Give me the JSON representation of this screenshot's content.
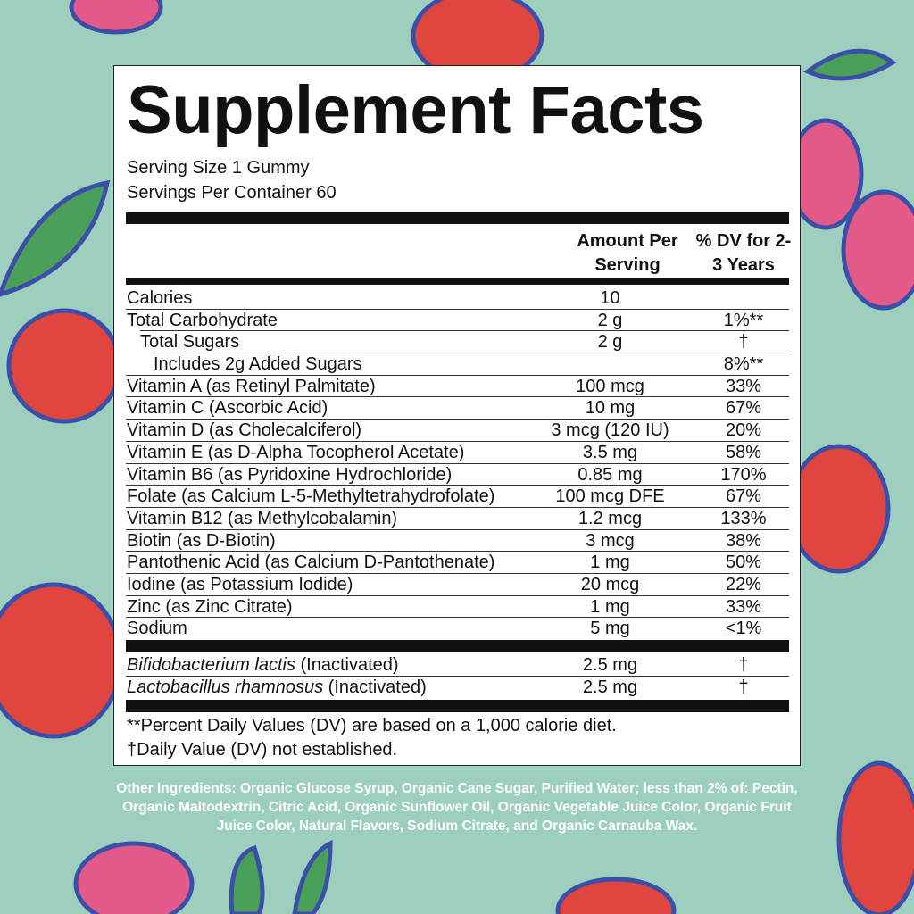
{
  "panel": {
    "title": "Supplement Facts",
    "serving_size": "Serving Size 1 Gummy",
    "servings_per_container": "Servings Per Container 60",
    "header_amount": "Amount Per Serving",
    "header_dv": "% DV for 2-3 Years",
    "rows": [
      {
        "name": "Calories",
        "amount": "10",
        "dv": "",
        "indent": 0
      },
      {
        "name": "Total Carbohydrate",
        "amount": "2 g",
        "dv": "1%**",
        "indent": 0
      },
      {
        "name": "Total Sugars",
        "amount": "2 g",
        "dv": "†",
        "indent": 1
      },
      {
        "name": "Includes 2g Added Sugars",
        "amount": "",
        "dv": "8%**",
        "indent": 2
      },
      {
        "name": "Vitamin A (as Retinyl Palmitate)",
        "amount": "100 mcg",
        "dv": "33%",
        "indent": 0
      },
      {
        "name": "Vitamin C (Ascorbic Acid)",
        "amount": "10 mg",
        "dv": "67%",
        "indent": 0
      },
      {
        "name": "Vitamin D (as Cholecalciferol)",
        "amount": "3 mcg (120 IU)",
        "dv": "20%",
        "indent": 0
      },
      {
        "name": "Vitamin E (as D-Alpha Tocopherol Acetate)",
        "amount": "3.5 mg",
        "dv": "58%",
        "indent": 0
      },
      {
        "name": "Vitamin B6 (as Pyridoxine Hydrochloride)",
        "amount": "0.85 mg",
        "dv": "170%",
        "indent": 0
      },
      {
        "name": "Folate (as Calcium L-5-Methyltetrahydrofolate)",
        "amount": "100 mcg DFE",
        "dv": "67%",
        "indent": 0
      },
      {
        "name": "Vitamin B12 (as Methylcobalamin)",
        "amount": "1.2 mcg",
        "dv": "133%",
        "indent": 0
      },
      {
        "name": "Biotin (as D-Biotin)",
        "amount": "3 mcg",
        "dv": "38%",
        "indent": 0
      },
      {
        "name": "Pantothenic Acid (as Calcium D-Pantothenate)",
        "amount": "1 mg",
        "dv": "50%",
        "indent": 0
      },
      {
        "name": "Iodine (as Potassium Iodide)",
        "amount": "20 mcg",
        "dv": "22%",
        "indent": 0
      },
      {
        "name": "Zinc (as Zinc Citrate)",
        "amount": "1 mg",
        "dv": "33%",
        "indent": 0
      },
      {
        "name": "Sodium",
        "amount": "5 mg",
        "dv": "<1%",
        "indent": 0
      }
    ],
    "probiotics": [
      {
        "name_italic": "Bifidobacterium lactis",
        "name_suffix": " (Inactivated)",
        "amount": "2.5 mg",
        "dv": "†"
      },
      {
        "name_italic": "Lactobacillus rhamnosus",
        "name_suffix": " (Inactivated)",
        "amount": "2.5 mg",
        "dv": "†"
      }
    ],
    "footnote_1": "**Percent Daily Values (DV) are based on a 1,000 calorie diet.",
    "footnote_2": "†Daily Value (DV) not established."
  },
  "other_ingredients": "Other Ingredients: Organic Glucose Syrup, Organic Cane Sugar, Purified Water; less than 2% of: Pectin, Organic Maltodextrin, Citric Acid, Organic Sunflower Oil, Organic Vegetable Juice Color, Organic Fruit Juice Color, Natural Flavors, Sodium Citrate, and Organic Carnauba Wax.",
  "colors": {
    "background": "#9dcfbf",
    "fruit_red": "#e0453f",
    "fruit_outline": "#3b4fa8",
    "raspberry": "#e25a8a",
    "leaf": "#4aa05a"
  }
}
